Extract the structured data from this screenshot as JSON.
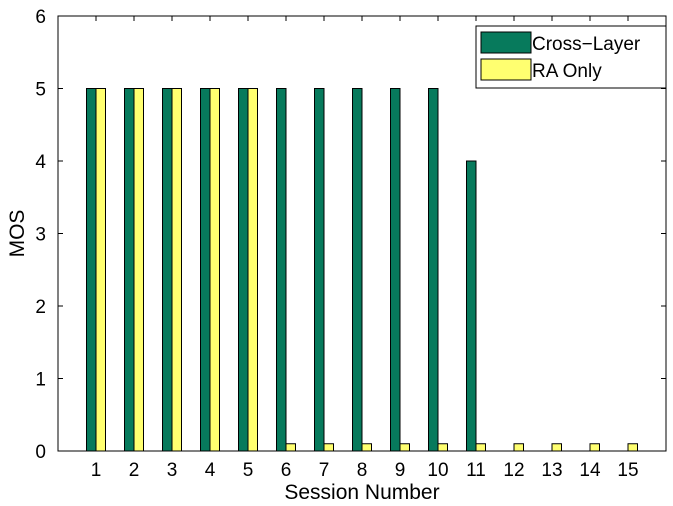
{
  "chart_data": {
    "type": "bar",
    "title": "",
    "xlabel": "Session Number",
    "ylabel": "MOS",
    "categories": [
      "1",
      "2",
      "3",
      "4",
      "5",
      "6",
      "7",
      "8",
      "9",
      "10",
      "11",
      "12",
      "13",
      "14",
      "15"
    ],
    "ylim": [
      0,
      6
    ],
    "yticks": [
      "0",
      "1",
      "2",
      "3",
      "4",
      "5",
      "6"
    ],
    "grid": false,
    "legend_position": "top-right",
    "series": [
      {
        "name": "Cross−Layer",
        "color": "#077a5c",
        "values": [
          5,
          5,
          5,
          5,
          5,
          5,
          5,
          5,
          5,
          5,
          4,
          0,
          0,
          0,
          0
        ]
      },
      {
        "name": "RA Only",
        "color": "#ffff70",
        "values": [
          5,
          5,
          5,
          5,
          5,
          0.1,
          0.1,
          0.1,
          0.1,
          0.1,
          0.1,
          0.1,
          0.1,
          0.1,
          0.1
        ]
      }
    ]
  }
}
